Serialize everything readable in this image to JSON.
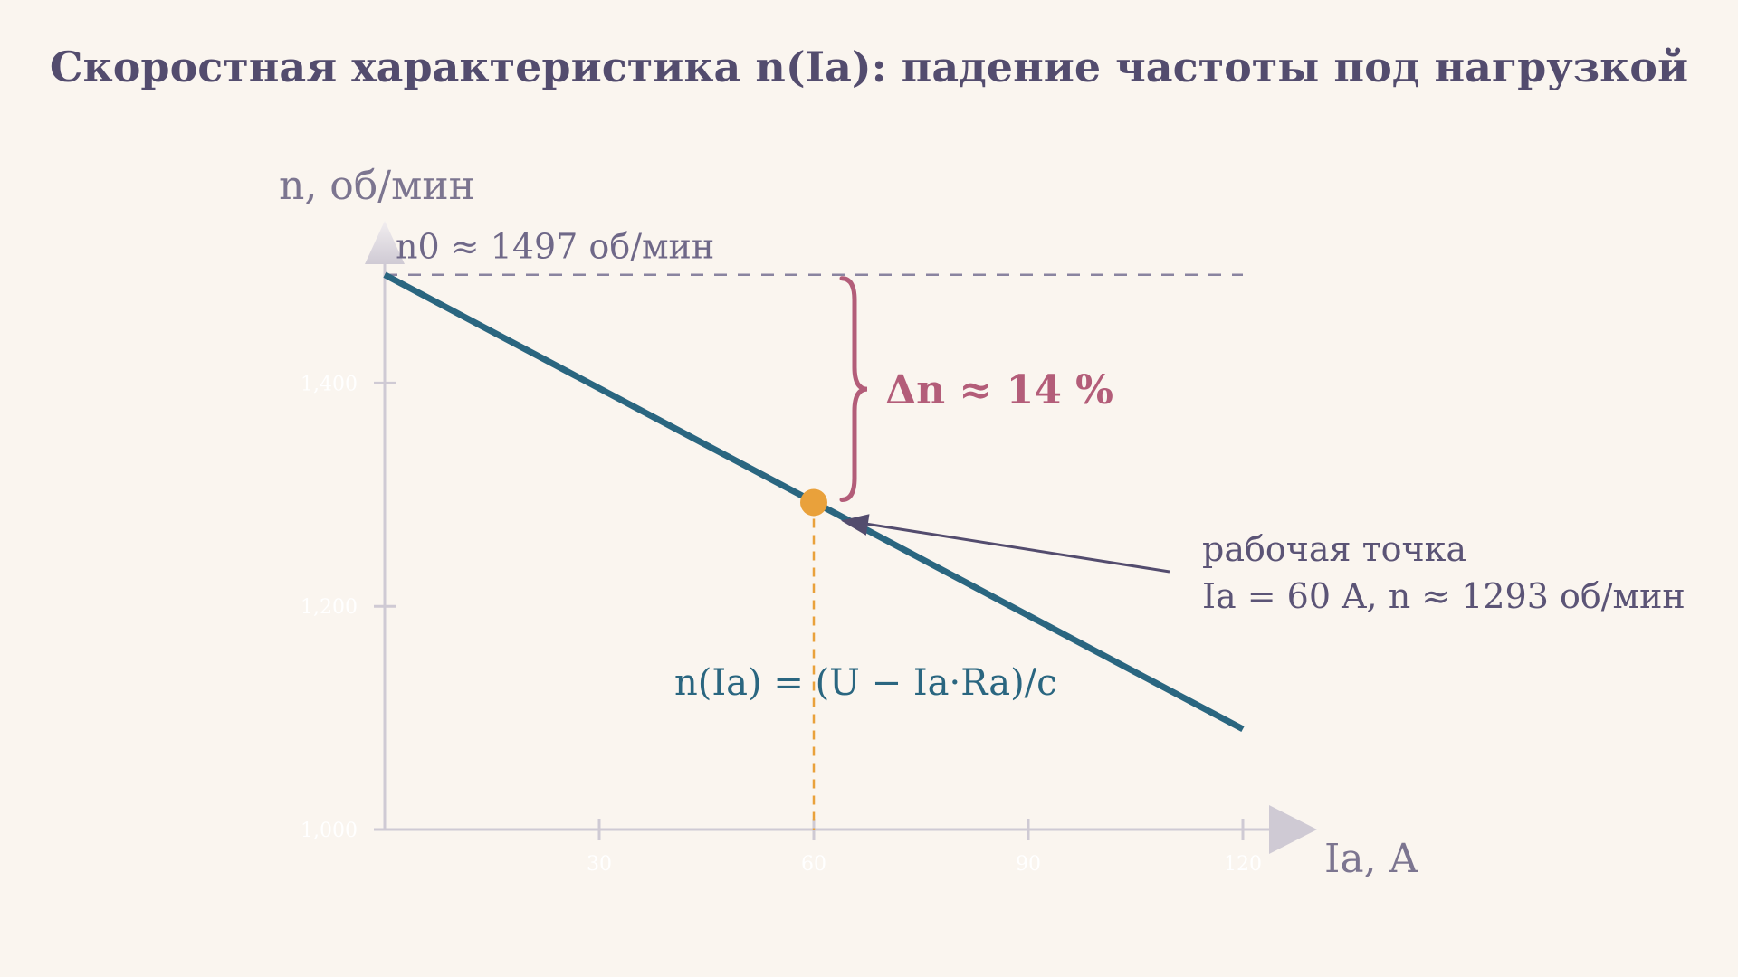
{
  "chart_data": {
    "type": "line",
    "title": "Скоростная характеристика n(Ia): падение частоты под нагрузкой",
    "xlabel": "Ia, A",
    "ylabel": "n, об/мин",
    "xlim": [
      0,
      120
    ],
    "ylim": [
      1000,
      1500
    ],
    "x_ticks": [
      30,
      60,
      90,
      120
    ],
    "x_tick_labels": [
      "30",
      "60",
      "90",
      "120"
    ],
    "y_ticks": [
      1000,
      1200,
      1400
    ],
    "y_tick_labels": [
      "1,000",
      "1,200",
      "1,400"
    ],
    "grid": false,
    "series": [
      {
        "x": [
          0,
          120
        ],
        "values": [
          1497,
          1090
        ],
        "color": "#2a6680"
      }
    ],
    "reference_line": {
      "y": 1497,
      "label": "n0  ≈  1497 об/мин"
    },
    "operating_point": {
      "x": 60,
      "y": 1293,
      "color": "#e9a13b",
      "label_line1": "рабочая точка",
      "label_line2": "Ia = 60 A,  n  ≈  1293 об/мин"
    },
    "delta_label": "Δn  ≈  14 %",
    "formula": "n(Ia) = (U − Ia·Ra)/c",
    "colors": {
      "line": "#2a6680",
      "point": "#e9a13b",
      "brace": "#b35d79",
      "reference": "#8a84a0",
      "axis": "#cfcad4"
    }
  }
}
